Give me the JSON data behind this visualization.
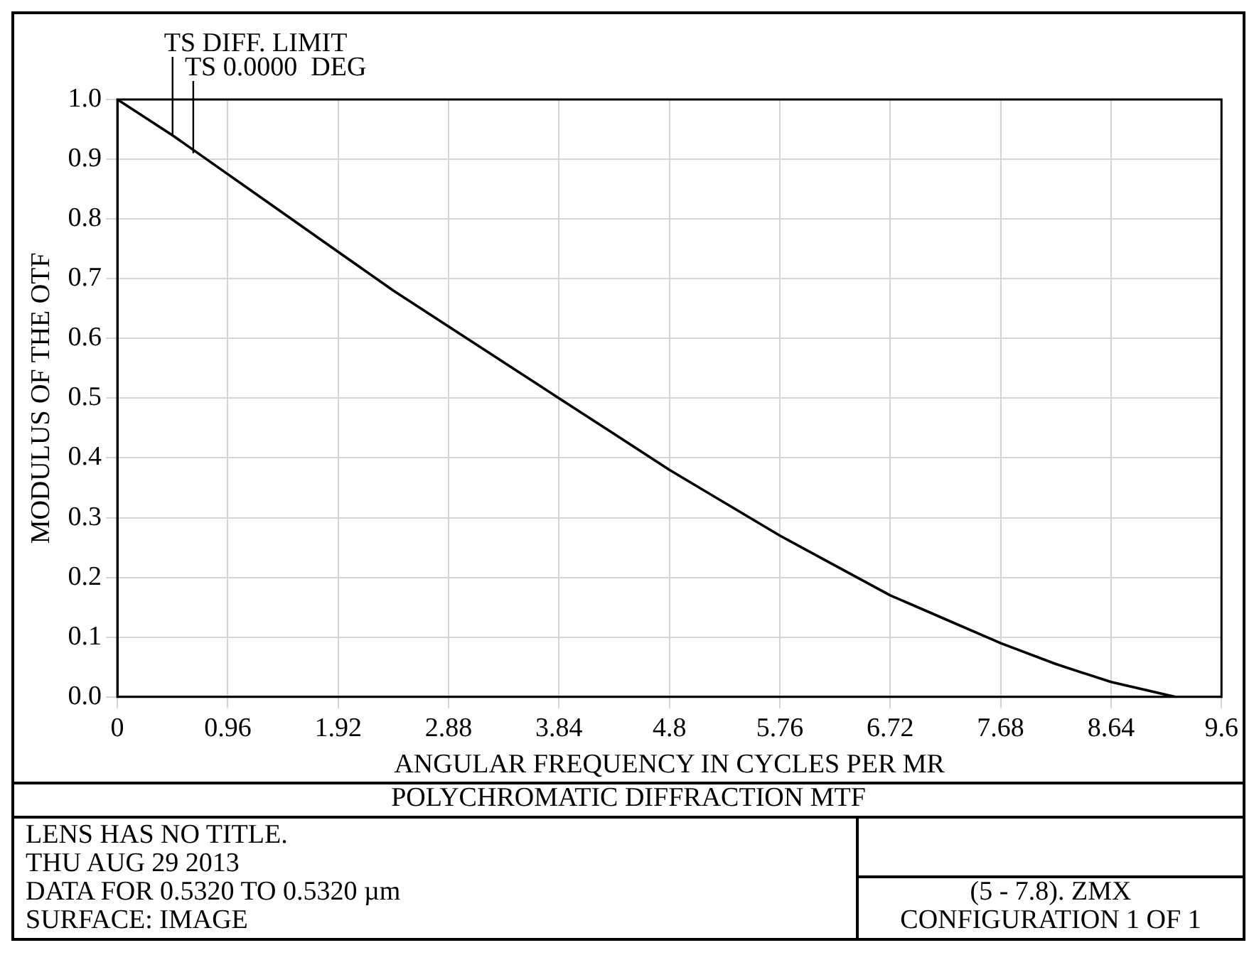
{
  "chart_data": {
    "type": "line",
    "title": "POLYCHROMATIC DIFFRACTION MTF",
    "xlabel": "ANGULAR FREQUENCY IN CYCLES PER MR",
    "ylabel": "MODULUS OF THE OTF",
    "x": [
      0,
      0.48,
      0.96,
      1.44,
      1.92,
      2.4,
      2.88,
      3.36,
      3.84,
      4.32,
      4.8,
      5.28,
      5.76,
      6.24,
      6.72,
      7.2,
      7.68,
      8.16,
      8.64,
      9.2
    ],
    "series": [
      {
        "name": "TS DIFF. LIMIT",
        "color": "#000000",
        "values": [
          1.0,
          0.94,
          0.875,
          0.81,
          0.745,
          0.68,
          0.62,
          0.56,
          0.5,
          0.44,
          0.38,
          0.325,
          0.27,
          0.22,
          0.17,
          0.13,
          0.09,
          0.055,
          0.025,
          0.0
        ]
      }
    ],
    "xlim": [
      0,
      9.6
    ],
    "xticks": [
      0,
      0.96,
      1.92,
      2.88,
      3.84,
      4.8,
      5.76,
      6.72,
      7.68,
      8.64,
      9.6
    ],
    "ylim": [
      0,
      1
    ],
    "yticks": [
      {
        "value": 0,
        "label": "0.0"
      },
      0.1,
      0.2,
      0.3,
      0.4,
      0.5,
      0.6,
      0.7,
      0.8,
      0.9,
      {
        "value": 1,
        "label": "1.0"
      }
    ],
    "grid": true,
    "legend": false,
    "marker": "none",
    "line_style": "solid",
    "annotations": [
      {
        "text": "TS 0.0000  DEG",
        "x": 0.66,
        "y": 0.91
      },
      "LENS HAS NO TITLE.",
      "THU AUG 29 2013",
      "DATA FOR 0.5320 TO 0.5320 µm",
      "SURFACE: IMAGE",
      "(5 - 7.8). ZMX",
      "CONFIGURATION 1 OF 1"
    ]
  }
}
